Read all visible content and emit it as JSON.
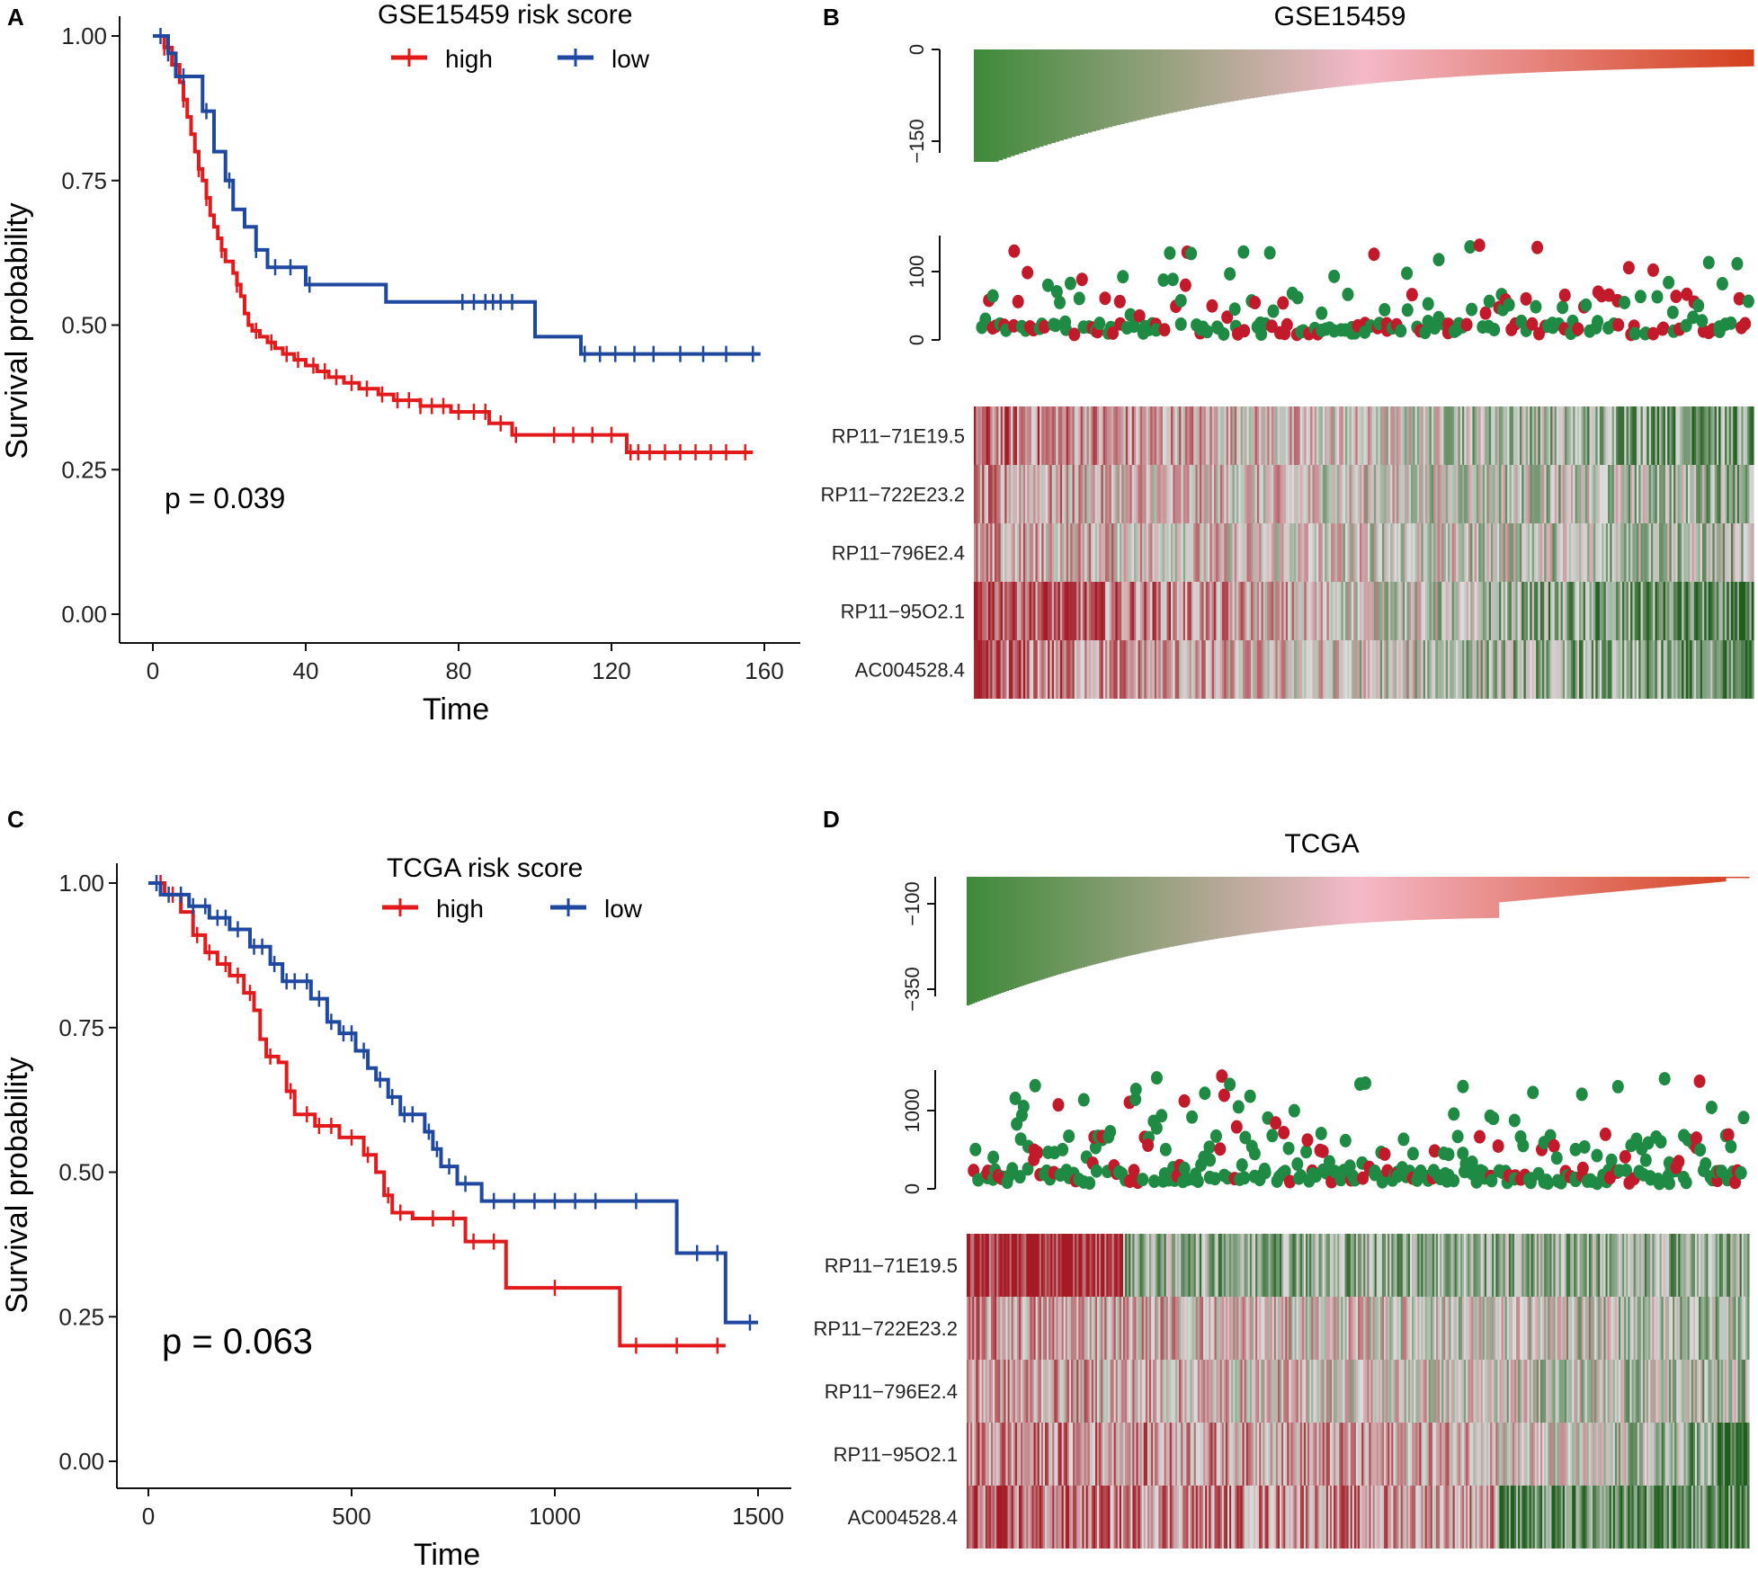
{
  "colors": {
    "high": "#e31a1c",
    "low": "#1f48a0",
    "axis": "#111111",
    "dot_high": "#c21a2b",
    "dot_low": "#1e8a43",
    "grad_low": "#3f8a3a",
    "grad_mid": "#f4b9c8",
    "grad_high": "#d4401c",
    "heat_red": "#a51a25",
    "heat_white": "#dcdcdc",
    "heat_green": "#1f5e1c"
  },
  "chart_data": [
    {
      "panel": "A",
      "type": "line",
      "subtype": "kaplan-meier",
      "title": "",
      "legend_title": "GSE15459 risk score",
      "legend_position": "top",
      "xlabel": "Time",
      "ylabel": "Survival probability",
      "xlim": [
        0,
        160
      ],
      "ylim": [
        0,
        1
      ],
      "xticks": [
        "0",
        "40",
        "80",
        "120",
        "160"
      ],
      "yticks": [
        "0.00",
        "0.25",
        "0.50",
        "0.75",
        "1.00"
      ],
      "pvalue": "p = 0.039",
      "series": [
        {
          "name": "high",
          "color": "#e31a1c",
          "steps": [
            [
              0,
              1.0
            ],
            [
              3,
              0.98
            ],
            [
              5,
              0.95
            ],
            [
              7,
              0.92
            ],
            [
              8,
              0.89
            ],
            [
              9,
              0.86
            ],
            [
              10,
              0.83
            ],
            [
              11,
              0.8
            ],
            [
              12,
              0.77
            ],
            [
              13,
              0.75
            ],
            [
              14,
              0.72
            ],
            [
              15,
              0.69
            ],
            [
              16,
              0.67
            ],
            [
              17,
              0.65
            ],
            [
              18,
              0.63
            ],
            [
              19,
              0.61
            ],
            [
              21,
              0.59
            ],
            [
              22,
              0.57
            ],
            [
              23,
              0.55
            ],
            [
              24,
              0.52
            ],
            [
              25,
              0.5
            ],
            [
              26,
              0.49
            ],
            [
              28,
              0.48
            ],
            [
              30,
              0.47
            ],
            [
              32,
              0.46
            ],
            [
              34,
              0.45
            ],
            [
              37,
              0.44
            ],
            [
              40,
              0.43
            ],
            [
              43,
              0.42
            ],
            [
              46,
              0.41
            ],
            [
              50,
              0.4
            ],
            [
              54,
              0.39
            ],
            [
              59,
              0.38
            ],
            [
              63,
              0.37
            ],
            [
              70,
              0.36
            ],
            [
              78,
              0.35
            ],
            [
              88,
              0.33
            ],
            [
              94,
              0.31
            ],
            [
              102,
              0.31
            ],
            [
              124,
              0.28
            ],
            [
              157,
              0.28
            ]
          ],
          "censor": [
            3,
            6,
            8,
            12,
            14,
            18,
            22,
            27,
            31,
            35,
            38,
            42,
            45,
            48,
            52,
            56,
            60,
            64,
            67,
            70,
            73,
            76,
            80,
            84,
            87,
            91,
            95,
            105,
            110,
            115,
            120,
            125,
            127,
            130,
            134,
            138,
            142,
            146,
            150,
            155
          ]
        },
        {
          "name": "low",
          "color": "#1f48a0",
          "steps": [
            [
              0,
              1.0
            ],
            [
              4,
              0.97
            ],
            [
              6,
              0.93
            ],
            [
              13,
              0.87
            ],
            [
              16,
              0.8
            ],
            [
              19,
              0.75
            ],
            [
              21,
              0.7
            ],
            [
              24,
              0.67
            ],
            [
              27,
              0.63
            ],
            [
              30,
              0.6
            ],
            [
              40,
              0.57
            ],
            [
              61,
              0.54
            ],
            [
              100,
              0.48
            ],
            [
              112,
              0.45
            ],
            [
              159,
              0.45
            ]
          ],
          "censor": [
            2,
            4,
            8,
            14,
            20,
            27,
            32,
            36,
            41,
            81,
            84,
            87,
            89,
            91,
            94,
            113,
            117,
            121,
            126,
            131,
            138,
            144,
            150,
            157
          ]
        }
      ]
    },
    {
      "panel": "B",
      "type": "bar",
      "subtype": "risk-score-plot",
      "title": "GSE15459",
      "risk_score_range": [
        -150,
        0
      ],
      "risk_score_ticks": [
        "0",
        "−150"
      ],
      "survival_range": [
        0,
        150
      ],
      "survival_ticks": [
        "0",
        "100"
      ],
      "n_samples": 192,
      "heatmap_genes": [
        "RP11−71E19.5",
        "RP11−722E23.2",
        "RP11−796E2.4",
        "RP11−95O2.1",
        "AC004528.4"
      ]
    },
    {
      "panel": "C",
      "type": "line",
      "subtype": "kaplan-meier",
      "title": "",
      "legend_title": "TCGA risk score",
      "legend_position": "top",
      "xlabel": "Time",
      "ylabel": "Survival probability",
      "xlim": [
        0,
        1500
      ],
      "ylim": [
        0,
        1
      ],
      "xticks": [
        "0",
        "500",
        "1000",
        "1500"
      ],
      "yticks": [
        "0.00",
        "0.25",
        "0.50",
        "0.75",
        "1.00"
      ],
      "pvalue": "p = 0.063",
      "series": [
        {
          "name": "high",
          "color": "#e31a1c",
          "steps": [
            [
              0,
              1.0
            ],
            [
              40,
              0.98
            ],
            [
              80,
              0.95
            ],
            [
              110,
              0.91
            ],
            [
              140,
              0.88
            ],
            [
              170,
              0.86
            ],
            [
              200,
              0.84
            ],
            [
              235,
              0.81
            ],
            [
              260,
              0.78
            ],
            [
              275,
              0.73
            ],
            [
              290,
              0.7
            ],
            [
              320,
              0.69
            ],
            [
              340,
              0.64
            ],
            [
              360,
              0.6
            ],
            [
              410,
              0.58
            ],
            [
              470,
              0.56
            ],
            [
              530,
              0.53
            ],
            [
              560,
              0.5
            ],
            [
              580,
              0.46
            ],
            [
              600,
              0.43
            ],
            [
              650,
              0.42
            ],
            [
              780,
              0.38
            ],
            [
              880,
              0.3
            ],
            [
              1160,
              0.2
            ],
            [
              1420,
              0.2
            ]
          ],
          "censor": [
            30,
            60,
            120,
            150,
            190,
            220,
            250,
            300,
            350,
            390,
            420,
            450,
            500,
            540,
            590,
            620,
            700,
            750,
            800,
            850,
            1000,
            1200,
            1300,
            1400
          ]
        },
        {
          "name": "low",
          "color": "#1f48a0",
          "steps": [
            [
              0,
              1.0
            ],
            [
              30,
              0.98
            ],
            [
              100,
              0.96
            ],
            [
              150,
              0.94
            ],
            [
              200,
              0.92
            ],
            [
              250,
              0.89
            ],
            [
              300,
              0.86
            ],
            [
              330,
              0.83
            ],
            [
              400,
              0.8
            ],
            [
              440,
              0.76
            ],
            [
              470,
              0.74
            ],
            [
              510,
              0.71
            ],
            [
              540,
              0.68
            ],
            [
              560,
              0.66
            ],
            [
              590,
              0.63
            ],
            [
              620,
              0.6
            ],
            [
              680,
              0.57
            ],
            [
              700,
              0.54
            ],
            [
              720,
              0.51
            ],
            [
              760,
              0.48
            ],
            [
              820,
              0.45
            ],
            [
              1300,
              0.36
            ],
            [
              1420,
              0.24
            ],
            [
              1500,
              0.24
            ]
          ],
          "censor": [
            20,
            50,
            80,
            110,
            140,
            170,
            190,
            220,
            260,
            280,
            310,
            340,
            360,
            390,
            420,
            450,
            480,
            500,
            530,
            570,
            600,
            630,
            650,
            690,
            710,
            740,
            780,
            850,
            900,
            950,
            1000,
            1050,
            1100,
            1200,
            1350,
            1400,
            1480
          ]
        }
      ]
    },
    {
      "panel": "D",
      "type": "bar",
      "subtype": "risk-score-plot",
      "title": "TCGA",
      "risk_score_range": [
        -400,
        0
      ],
      "risk_score_ticks": [
        "−100",
        "−350"
      ],
      "survival_range": [
        0,
        1600
      ],
      "survival_ticks": [
        "0",
        "1000"
      ],
      "n_samples": 300,
      "heatmap_genes": [
        "RP11−71E19.5",
        "RP11−722E23.2",
        "RP11−796E2.4",
        "RP11−95O2.1",
        "AC004528.4"
      ]
    }
  ],
  "panel_labels": [
    "A",
    "B",
    "C",
    "D"
  ]
}
